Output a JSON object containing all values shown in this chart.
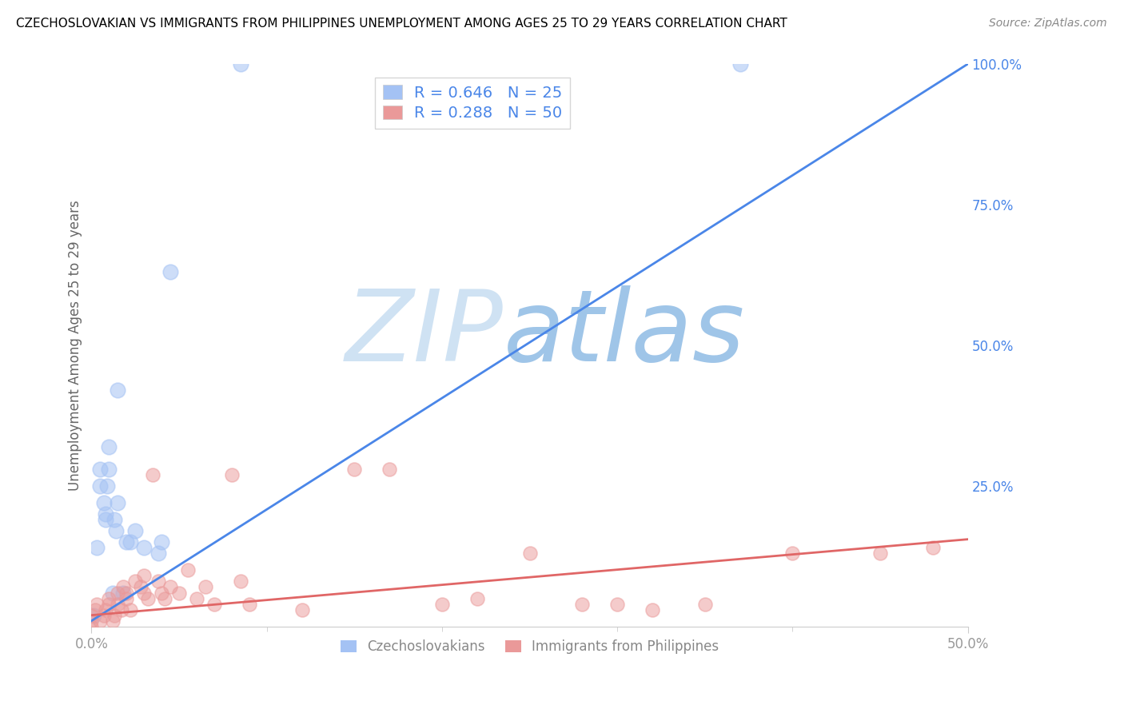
{
  "title": "CZECHOSLOVAKIAN VS IMMIGRANTS FROM PHILIPPINES UNEMPLOYMENT AMONG AGES 25 TO 29 YEARS CORRELATION CHART",
  "source": "Source: ZipAtlas.com",
  "ylabel": "Unemployment Among Ages 25 to 29 years",
  "ylim": [
    0.0,
    1.0
  ],
  "xlim": [
    0.0,
    0.5
  ],
  "yticks_right": [
    0.0,
    0.25,
    0.5,
    0.75,
    1.0
  ],
  "ytick_labels_right": [
    "",
    "25.0%",
    "50.0%",
    "75.0%",
    "100.0%"
  ],
  "blue_R": 0.646,
  "blue_N": 25,
  "pink_R": 0.288,
  "pink_N": 50,
  "blue_color": "#a4c2f4",
  "pink_color": "#ea9999",
  "blue_line_color": "#4a86e8",
  "pink_line_color": "#e06666",
  "watermark_zip_color": "#cfe2f3",
  "watermark_atlas_color": "#9fc5e8",
  "blue_scatter_x": [
    0.001,
    0.003,
    0.005,
    0.005,
    0.007,
    0.008,
    0.008,
    0.009,
    0.01,
    0.01,
    0.012,
    0.013,
    0.014,
    0.015,
    0.015,
    0.018,
    0.02,
    0.022,
    0.025,
    0.03,
    0.038,
    0.04,
    0.045,
    0.085,
    0.37
  ],
  "blue_scatter_y": [
    0.02,
    0.14,
    0.25,
    0.28,
    0.22,
    0.19,
    0.2,
    0.25,
    0.28,
    0.32,
    0.06,
    0.19,
    0.17,
    0.42,
    0.22,
    0.06,
    0.15,
    0.15,
    0.17,
    0.14,
    0.13,
    0.15,
    0.63,
    1.0,
    1.0
  ],
  "pink_scatter_x": [
    0.0,
    0.0,
    0.0,
    0.002,
    0.003,
    0.005,
    0.007,
    0.008,
    0.01,
    0.01,
    0.012,
    0.013,
    0.015,
    0.015,
    0.017,
    0.018,
    0.02,
    0.02,
    0.022,
    0.025,
    0.028,
    0.03,
    0.03,
    0.032,
    0.035,
    0.038,
    0.04,
    0.042,
    0.045,
    0.05,
    0.055,
    0.06,
    0.065,
    0.07,
    0.08,
    0.085,
    0.09,
    0.12,
    0.15,
    0.17,
    0.2,
    0.22,
    0.25,
    0.28,
    0.3,
    0.32,
    0.35,
    0.4,
    0.45,
    0.48
  ],
  "pink_scatter_y": [
    0.0,
    0.01,
    0.02,
    0.03,
    0.04,
    0.01,
    0.02,
    0.03,
    0.04,
    0.05,
    0.01,
    0.02,
    0.06,
    0.04,
    0.03,
    0.07,
    0.05,
    0.06,
    0.03,
    0.08,
    0.07,
    0.09,
    0.06,
    0.05,
    0.27,
    0.08,
    0.06,
    0.05,
    0.07,
    0.06,
    0.1,
    0.05,
    0.07,
    0.04,
    0.27,
    0.08,
    0.04,
    0.03,
    0.28,
    0.28,
    0.04,
    0.05,
    0.13,
    0.04,
    0.04,
    0.03,
    0.04,
    0.13,
    0.13,
    0.14
  ],
  "blue_line_x0": 0.0,
  "blue_line_x1": 0.5,
  "blue_line_y0": 0.01,
  "blue_line_y1": 1.0,
  "pink_line_x0": 0.0,
  "pink_line_x1": 0.5,
  "pink_line_y0": 0.02,
  "pink_line_y1": 0.155,
  "grid_color": "#d9d9d9",
  "bg_color": "#ffffff",
  "title_color": "#000000",
  "axis_label_color": "#666666",
  "right_axis_color": "#4a86e8",
  "xtick_color": "#999999",
  "bottom_ticks_labels": [
    "0.0%",
    "50.0%"
  ]
}
